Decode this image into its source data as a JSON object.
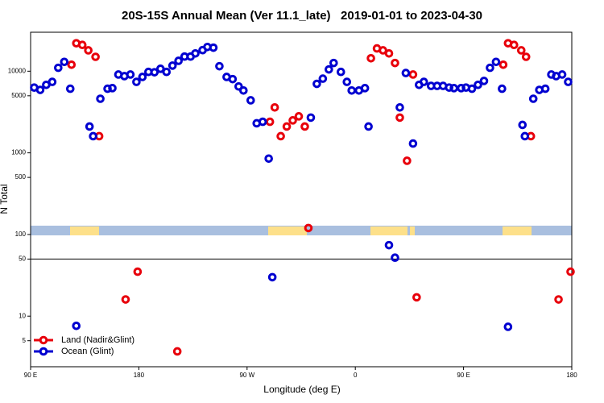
{
  "chart_data": {
    "type": "scatter",
    "title": "20S-15S Annual Mean (Ver 11.1_late)   2019-01-01 to 2023-04-30",
    "x_label": "Longitude (deg E)",
    "y_label": "N Total",
    "log_y": true,
    "xlim": [
      90,
      540
    ],
    "ylim": [
      2.4,
      30000
    ],
    "xticks": [
      {
        "value": 90,
        "label": "90 E"
      },
      180,
      {
        "value": 270,
        "label": "90 W"
      },
      {
        "value": 360,
        "label": "0"
      },
      {
        "value": 450,
        "label": "90 E"
      },
      {
        "value": 540,
        "label": "180"
      }
    ],
    "yticks": [
      5,
      10,
      50,
      100,
      500,
      1000,
      5000,
      10000
    ],
    "hline": 50,
    "legend": "lower left",
    "series": [
      {
        "name": "Land (Nadir&Glint)",
        "color": "#e8000b",
        "x": [
          124,
          128,
          133,
          138,
          144,
          147,
          169,
          179,
          212,
          289,
          293,
          298,
          303,
          308,
          313,
          318,
          321,
          373,
          378,
          383,
          388,
          393,
          397,
          403,
          408,
          411,
          483,
          487,
          492,
          498,
          502,
          506,
          529,
          539
        ],
        "values": [
          12000,
          22000,
          21000,
          18000,
          15000,
          1600,
          16,
          35,
          3.7,
          2400,
          3600,
          1600,
          2100,
          2500,
          2800,
          2100,
          120,
          14400,
          19000,
          18000,
          16500,
          12600,
          2700,
          800,
          9100,
          17,
          12000,
          22000,
          21000,
          18000,
          15000,
          1600,
          16,
          35
        ]
      },
      {
        "name": "Ocean (Glint)",
        "color": "#0000d0",
        "x": [
          93,
          98,
          103,
          108,
          113,
          118,
          123,
          128,
          139,
          142,
          148,
          154,
          158,
          163,
          168,
          173,
          178,
          183,
          188,
          193,
          198,
          203,
          208,
          213,
          218,
          223,
          227,
          233,
          237,
          242,
          247,
          253,
          258,
          263,
          267,
          273,
          278,
          283,
          288,
          291,
          323,
          328,
          333,
          338,
          342,
          348,
          353,
          357,
          363,
          368,
          371,
          388,
          393,
          397,
          402,
          408,
          413,
          417,
          423,
          428,
          433,
          438,
          442,
          448,
          452,
          457,
          462,
          467,
          472,
          477,
          482,
          487,
          499,
          501,
          508,
          513,
          518,
          523,
          527,
          532,
          537
        ],
        "values": [
          6300,
          5900,
          6800,
          7400,
          11000,
          13000,
          6100,
          7.6,
          2100,
          1600,
          4600,
          6100,
          6200,
          9100,
          8700,
          9100,
          7400,
          8500,
          9800,
          9700,
          10700,
          9800,
          11700,
          13400,
          15100,
          15100,
          16500,
          18100,
          19800,
          19400,
          11500,
          8500,
          8000,
          6500,
          5800,
          4400,
          2300,
          2400,
          850,
          30,
          2700,
          7000,
          8100,
          10500,
          12600,
          9800,
          7400,
          5800,
          5800,
          6200,
          2100,
          74,
          52,
          3600,
          9500,
          1300,
          6800,
          7400,
          6600,
          6600,
          6600,
          6300,
          6200,
          6200,
          6300,
          6100,
          6800,
          7600,
          11000,
          13000,
          6100,
          7.4,
          2200,
          1600,
          4600,
          5900,
          6100,
          9100,
          8700,
          9100,
          7400
        ]
      }
    ]
  }
}
